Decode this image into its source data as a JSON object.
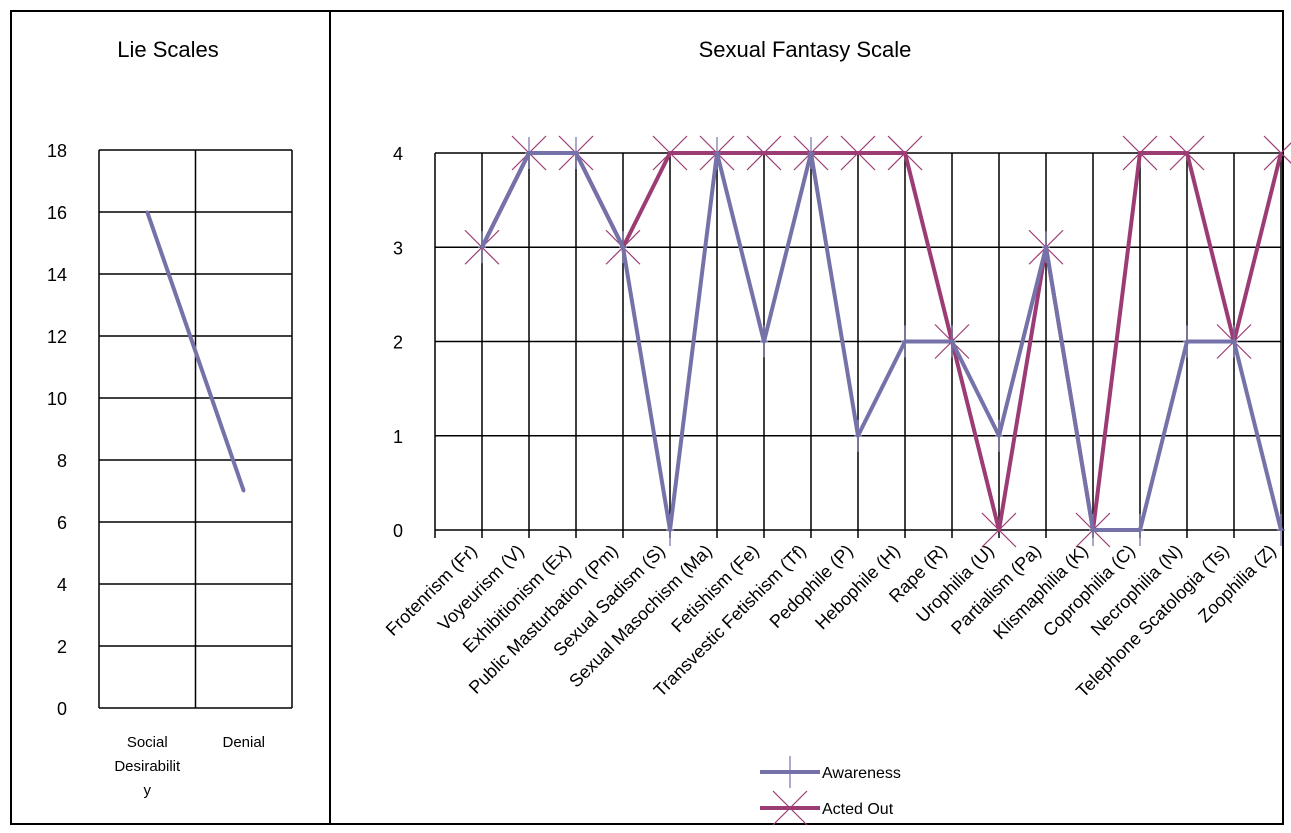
{
  "chart_data": [
    {
      "type": "line",
      "title": "Lie Scales",
      "categories": [
        "Social Desirability",
        "Denial"
      ],
      "category_label_lines": [
        [
          "Social",
          "Desirabilit",
          "y"
        ],
        [
          "Denial"
        ]
      ],
      "yticks": [
        "0",
        "2",
        "4",
        "6",
        "8",
        "10",
        "12",
        "14",
        "16",
        "18"
      ],
      "ylim": [
        0,
        18
      ],
      "grid": true,
      "series": [
        {
          "values": [
            16,
            7
          ],
          "color": "#7572a9"
        }
      ]
    },
    {
      "type": "line",
      "title": "Sexual Fantasy Scale",
      "categories": [
        "Frotenrism (Fr)",
        "Voyeurism (V)",
        "Exhibitionism (Ex)",
        "Public Masturbation (Pm)",
        "Sexual Sadism (S)",
        "Sexual Masochism (Ma)",
        "Fetishism (Fe)",
        "Transvestic Fetishism (Tf)",
        "Pedophile (P)",
        "Hebophile (H)",
        "Rape (R)",
        "Urophilia (U)",
        "Partialism (Pa)",
        "Klismaphilia (K)",
        "Coprophilia (C)",
        "Necrophilia (N)",
        "Telephone Scatologia (Ts)",
        "Zoophilia (Z)"
      ],
      "yticks": [
        "0",
        "1",
        "2",
        "3",
        "4"
      ],
      "ylim": [
        0,
        4
      ],
      "grid": true,
      "legend_position": "bottom",
      "series": [
        {
          "name": "Awareness",
          "color": "#7572a9",
          "marker": "plus",
          "values": [
            3,
            4,
            4,
            3,
            0,
            4,
            2,
            4,
            1,
            2,
            2,
            1,
            3,
            0,
            0,
            2,
            2,
            0
          ]
        },
        {
          "name": "Acted Out",
          "color": "#9c3c74",
          "marker": "x",
          "values": [
            3,
            4,
            4,
            3,
            4,
            4,
            4,
            4,
            4,
            4,
            2,
            0,
            3,
            0,
            4,
            4,
            2,
            4
          ]
        }
      ]
    }
  ]
}
